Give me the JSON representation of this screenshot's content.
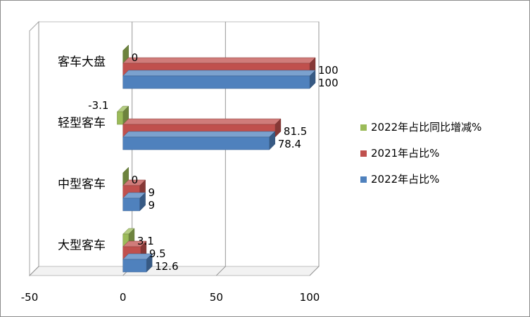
{
  "chart_data": {
    "type": "bar",
    "orientation": "horizontal",
    "style": "3d",
    "categories": [
      "大型客车",
      "中型客车",
      "轻型客车",
      "客车大盘"
    ],
    "series": [
      {
        "name": "2022年占比%",
        "color": "#4F81BD",
        "values": [
          12.6,
          9,
          78.4,
          100
        ]
      },
      {
        "name": "2021年占比%",
        "color": "#C0504D",
        "values": [
          9.5,
          9,
          81.5,
          100
        ]
      },
      {
        "name": "2022年占比同比增减%",
        "color": "#9BBB59",
        "values": [
          3.1,
          0,
          -3.1,
          0
        ]
      }
    ],
    "xlim": [
      -50,
      100
    ],
    "x_ticks": [
      "-50",
      "0",
      "50",
      "100"
    ],
    "grid": true,
    "legend_position": "right",
    "data_labels": true
  }
}
